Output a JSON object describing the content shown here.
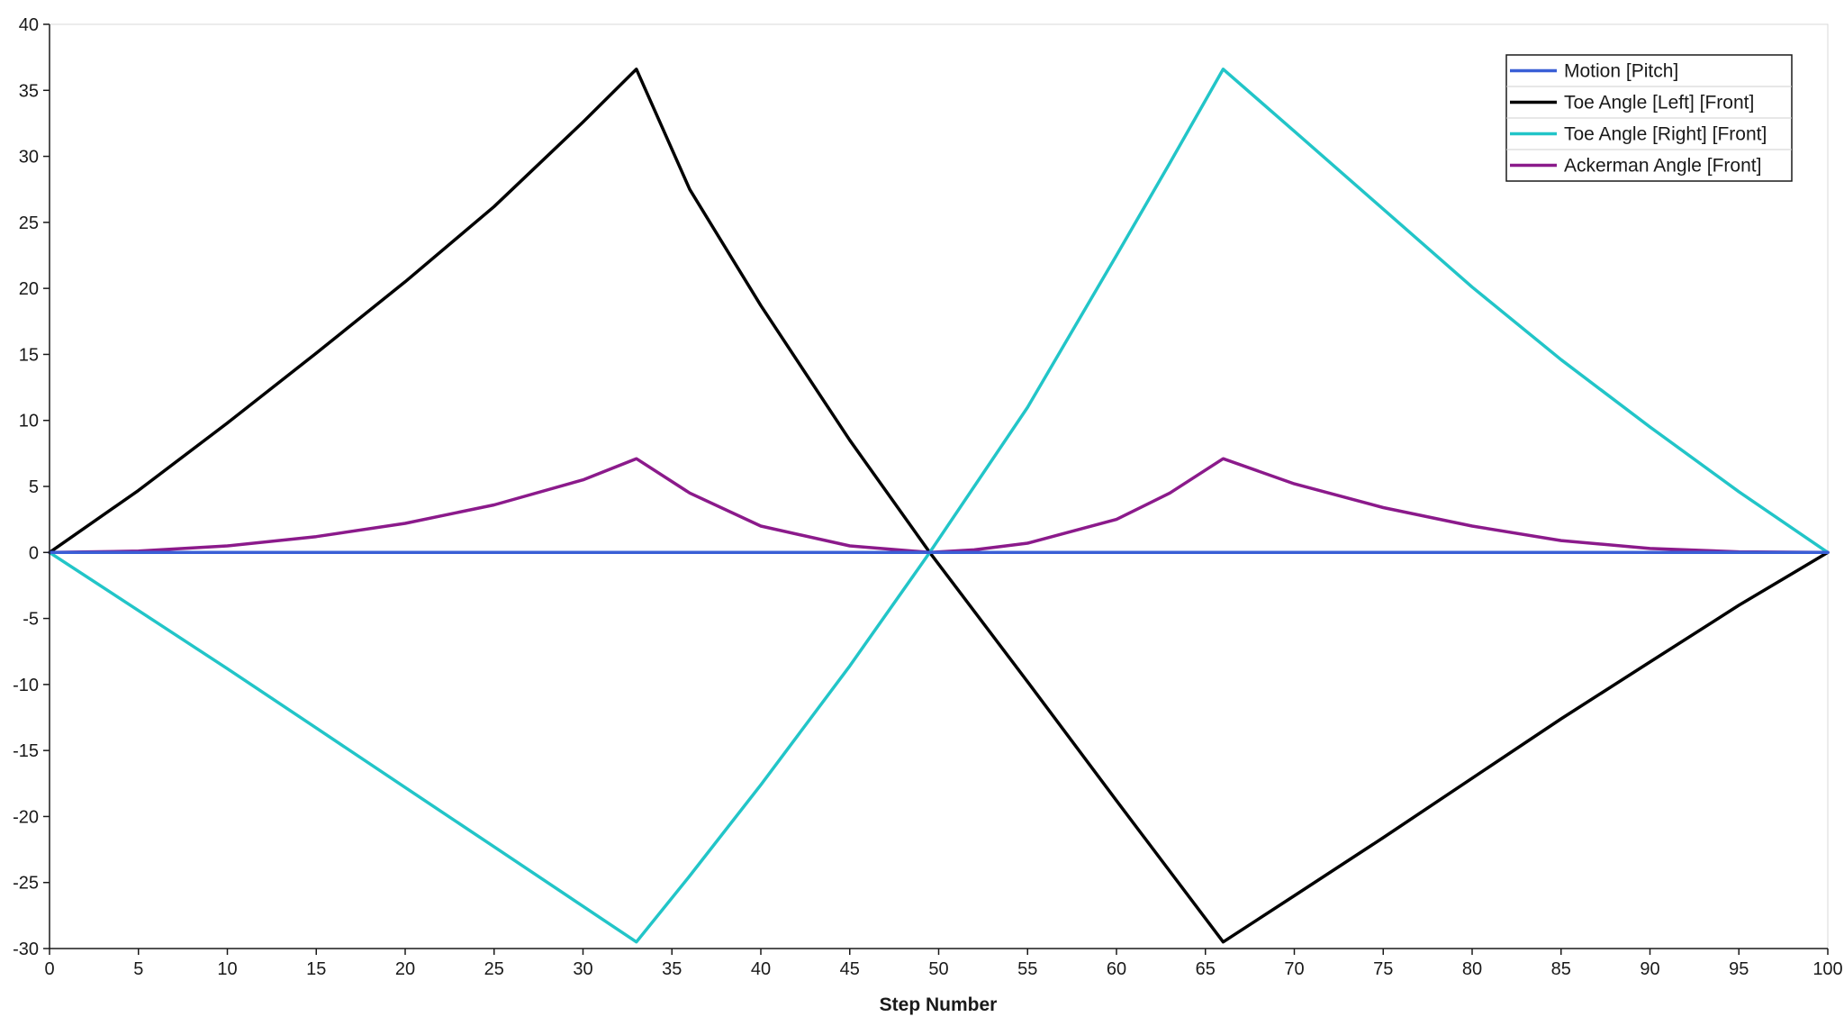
{
  "chart_data": {
    "type": "line",
    "title": "",
    "xlabel": "Step Number",
    "ylabel": "",
    "xlim": [
      0,
      100
    ],
    "ylim": [
      -30,
      40
    ],
    "xticks": [
      0,
      5,
      10,
      15,
      20,
      25,
      30,
      35,
      40,
      45,
      50,
      55,
      60,
      65,
      70,
      75,
      80,
      85,
      90,
      95,
      100
    ],
    "yticks": [
      -30,
      -25,
      -20,
      -15,
      -10,
      -5,
      0,
      5,
      10,
      15,
      20,
      25,
      30,
      35,
      40
    ],
    "grid": false,
    "legend_position": "top-right",
    "series": [
      {
        "name": "Motion [Pitch]",
        "color": "#3a5fd6",
        "x": [
          0,
          100
        ],
        "y": [
          0,
          0
        ]
      },
      {
        "name": "Toe Angle [Left] [Front]",
        "color": "#000000",
        "x": [
          0,
          5,
          10,
          15,
          20,
          25,
          30,
          33,
          36,
          40,
          45,
          49.5,
          55,
          60,
          66,
          70,
          75,
          80,
          85,
          90,
          95,
          100
        ],
        "y": [
          0,
          4.7,
          9.8,
          15.1,
          20.5,
          26.2,
          32.6,
          36.6,
          27.5,
          18.7,
          8.5,
          0,
          -9.8,
          -18.8,
          -29.5,
          -26.0,
          -21.6,
          -17.1,
          -12.6,
          -8.3,
          -4.0,
          0
        ]
      },
      {
        "name": "Toe Angle [Right] [Front]",
        "color": "#22c5c8",
        "x": [
          0,
          5,
          10,
          15,
          20,
          25,
          30,
          33,
          36,
          40,
          45,
          49.5,
          55,
          60,
          63,
          66,
          70,
          75,
          80,
          85,
          90,
          95,
          100
        ],
        "y": [
          0,
          -4.4,
          -8.8,
          -13.3,
          -17.8,
          -22.3,
          -26.8,
          -29.5,
          -24.5,
          -17.6,
          -8.6,
          0,
          11.0,
          22.5,
          29.5,
          36.6,
          31.9,
          26.0,
          20.1,
          14.6,
          9.5,
          4.6,
          0
        ]
      },
      {
        "name": "Ackerman Angle [Front]",
        "color": "#8b1a8b",
        "x": [
          0,
          5,
          10,
          15,
          20,
          25,
          30,
          33,
          36,
          40,
          45,
          49.5,
          52,
          55,
          60,
          63,
          66,
          70,
          75,
          80,
          85,
          90,
          95,
          100
        ],
        "y": [
          0,
          0.1,
          0.5,
          1.2,
          2.2,
          3.6,
          5.5,
          7.1,
          4.5,
          2.0,
          0.5,
          0,
          0.2,
          0.7,
          2.5,
          4.5,
          7.1,
          5.2,
          3.4,
          2.0,
          0.9,
          0.3,
          0.05,
          0
        ]
      }
    ]
  }
}
